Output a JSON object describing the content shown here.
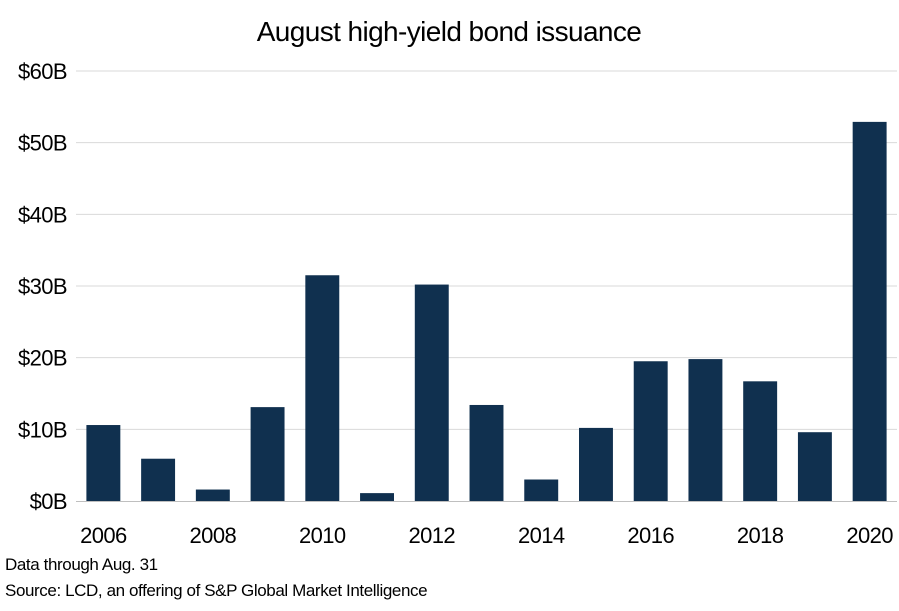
{
  "chart_data": {
    "type": "bar",
    "title": "August high-yield bond issuance",
    "xlabel": "",
    "ylabel": "",
    "categories": [
      "2006",
      "2007",
      "2008",
      "2009",
      "2010",
      "2011",
      "2012",
      "2013",
      "2014",
      "2015",
      "2016",
      "2017",
      "2018",
      "2019",
      "2020"
    ],
    "x_tick_labels": [
      "2006",
      "",
      "2008",
      "",
      "2010",
      "",
      "2012",
      "",
      "2014",
      "",
      "2016",
      "",
      "2018",
      "",
      "2020"
    ],
    "values": [
      10.6,
      5.9,
      1.6,
      13.1,
      31.5,
      1.1,
      30.2,
      13.4,
      3.0,
      10.2,
      19.5,
      19.8,
      16.7,
      9.6,
      52.9
    ],
    "ylim": [
      0,
      60
    ],
    "y_ticks": [
      0,
      10,
      20,
      30,
      40,
      50,
      60
    ],
    "y_tick_labels": [
      "$0B",
      "$10B",
      "$20B",
      "$30B",
      "$40B",
      "$50B",
      "$60B"
    ],
    "grid": true,
    "legend": "none",
    "bar_color": "#10304f",
    "gridline_color": "#d9d9d9"
  },
  "footnotes": {
    "note": "Data through Aug. 31",
    "source": "Source: LCD, an offering of S&P Global Market Intelligence"
  }
}
